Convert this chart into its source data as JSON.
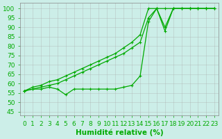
{
  "title": "",
  "xlabel": "Humidité relative (%)",
  "ylabel": "",
  "background_color": "#cceee8",
  "grid_color": "#aaaaaa",
  "line_color": "#00aa00",
  "xlim": [
    -0.5,
    23.5
  ],
  "ylim": [
    43,
    103
  ],
  "yticks": [
    45,
    50,
    55,
    60,
    65,
    70,
    75,
    80,
    85,
    90,
    95,
    100
  ],
  "xticks": [
    0,
    1,
    2,
    3,
    4,
    5,
    6,
    7,
    8,
    9,
    10,
    11,
    12,
    13,
    14,
    15,
    16,
    17,
    18,
    19,
    20,
    21,
    22,
    23
  ],
  "series1_x": [
    0,
    1,
    2,
    3,
    4,
    5,
    6,
    7,
    8,
    9,
    10,
    11,
    12,
    13,
    14,
    15,
    16,
    17,
    18,
    19,
    20,
    21,
    22,
    23
  ],
  "series1_y": [
    56,
    58,
    59,
    61,
    62,
    64,
    66,
    68,
    70,
    72,
    74,
    76,
    79,
    82,
    86,
    100,
    100,
    100,
    100,
    100,
    100,
    100,
    100,
    100
  ],
  "series2_x": [
    0,
    1,
    2,
    3,
    4,
    5,
    6,
    7,
    8,
    9,
    10,
    11,
    12,
    13,
    14,
    15,
    16,
    17,
    18,
    19,
    20,
    21,
    22,
    23
  ],
  "series2_y": [
    56,
    57,
    57,
    58,
    57,
    54,
    57,
    57,
    57,
    57,
    57,
    57,
    58,
    59,
    64,
    93,
    100,
    90,
    100,
    100,
    100,
    100,
    100,
    100
  ],
  "series3_x": [
    0,
    1,
    2,
    3,
    4,
    5,
    6,
    7,
    8,
    9,
    10,
    11,
    12,
    13,
    14,
    15,
    16,
    17,
    18,
    19,
    20,
    21,
    22,
    23
  ],
  "series3_y": [
    56,
    57,
    58,
    59,
    60,
    62,
    64,
    66,
    68,
    70,
    72,
    74,
    76,
    79,
    82,
    95,
    100,
    88,
    100,
    100,
    100,
    100,
    100,
    100
  ],
  "xlabel_color": "#00aa00",
  "xlabel_fontsize": 7.5,
  "tick_fontsize": 6.5,
  "tick_color": "#00aa00"
}
